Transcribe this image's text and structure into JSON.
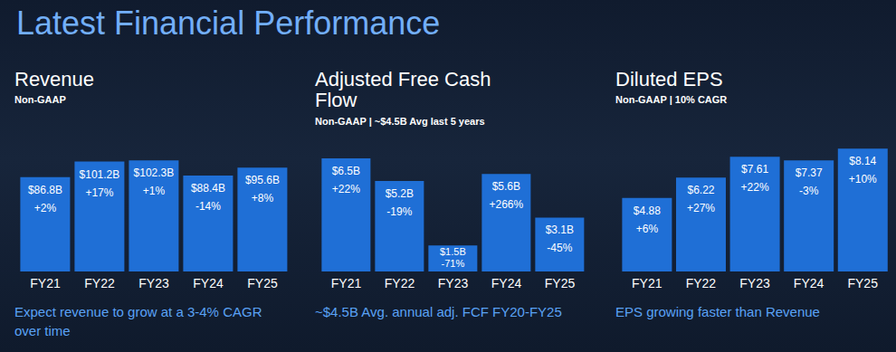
{
  "title": "Latest Financial Performance",
  "chart_data": [
    {
      "type": "bar",
      "title": "Revenue",
      "subtitle": "Non-GAAP",
      "categories": [
        "FY21",
        "FY22",
        "FY23",
        "FY24",
        "FY25"
      ],
      "values": [
        86.8,
        101.2,
        102.3,
        88.4,
        95.6
      ],
      "value_labels": [
        "$86.8B",
        "$101.2B",
        "$102.3B",
        "$88.4B",
        "$95.6B"
      ],
      "growth": [
        2,
        17,
        1,
        -14,
        8
      ],
      "growth_labels": [
        "+2%",
        "+17%",
        "+1%",
        "-14%",
        "+8%"
      ],
      "color": "#1f6fd6",
      "ylim": [
        0,
        125
      ],
      "yticks": [
        0,
        125
      ],
      "data_labels": true,
      "tick_labels": "x",
      "annotations": [
        "Expect revenue to grow at a 3-4% CAGR over time"
      ]
    },
    {
      "type": "bar",
      "title": "Adjusted Free Cash Flow",
      "subtitle": "Non-GAAP | ~$4.5B Avg last 5 years",
      "categories": [
        "FY21",
        "FY22",
        "FY23",
        "FY24",
        "FY25"
      ],
      "values": [
        6.5,
        5.2,
        1.5,
        5.6,
        3.1
      ],
      "value_labels": [
        "$6.5B",
        "$5.2B",
        "$1.5B",
        "$5.6B",
        "$3.1B"
      ],
      "growth": [
        22,
        -19,
        -71,
        266,
        -45
      ],
      "growth_labels": [
        "+22%",
        "-19%",
        "-71%",
        "+266%",
        "-45%"
      ],
      "color": "#1f6fd6",
      "ylim": [
        0,
        7.8
      ],
      "yticks": [
        0,
        7.8
      ],
      "data_labels": true,
      "tick_labels": "x",
      "annotations": [
        "~$4.5B Avg. annual adj. FCF FY20-FY25"
      ]
    },
    {
      "type": "bar",
      "title": "Diluted EPS",
      "subtitle": "Non-GAAP | 10% CAGR",
      "categories": [
        "FY21",
        "FY22",
        "FY23",
        "FY24",
        "FY25"
      ],
      "values": [
        4.88,
        6.22,
        7.61,
        7.37,
        8.14
      ],
      "value_labels": [
        "$4.88",
        "$6.22",
        "$7.61",
        "$7.37",
        "$8.14"
      ],
      "growth": [
        6,
        27,
        22,
        -3,
        10
      ],
      "growth_labels": [
        "+6%",
        "+27%",
        "+22%",
        "-3%",
        "+10%"
      ],
      "color": "#1f6fd6",
      "ylim": [
        0,
        9
      ],
      "yticks": [
        0,
        9
      ],
      "data_labels": true,
      "tick_labels": "x",
      "annotations": [
        "EPS growing faster than Revenue"
      ]
    }
  ]
}
